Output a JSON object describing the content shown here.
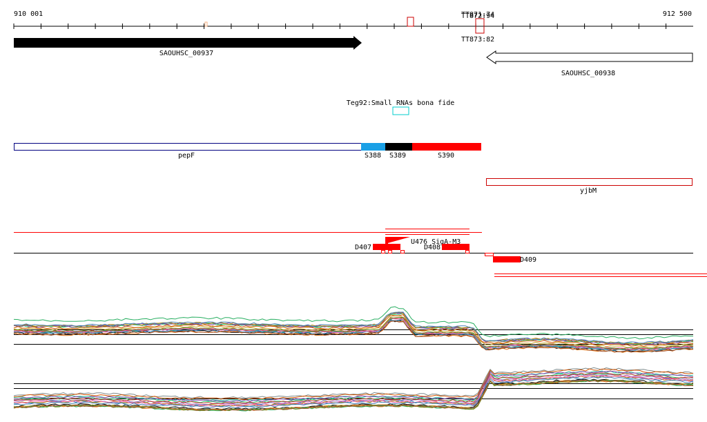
{
  "coordinates": {
    "start": "910 001",
    "end": "912 500",
    "start_bp": 910001,
    "end_bp": 912500
  },
  "terminators": [
    {
      "label": "TT871:74",
      "start_bp": 911700,
      "end_bp": 911710
    },
    {
      "label": "TT872:94",
      "start_bp": 911703,
      "end_bp": 911714
    },
    {
      "label": "TT873:82",
      "start_bp": 911700,
      "end_bp": 911712
    }
  ],
  "genes": [
    {
      "label": "SAOUHSC_00937",
      "strand": "+",
      "start_bp": 910001,
      "end_bp": 911280,
      "color": "#000000"
    },
    {
      "label": "SAOUHSC_00938",
      "strand": "-",
      "start_bp": 911730,
      "end_bp": 912500,
      "color": "#000000"
    }
  ],
  "small_rna": {
    "label": "Teg92:Small RNAs bona fide",
    "start_bp": 911391,
    "end_bp": 911451,
    "color": "#00cccc"
  },
  "operon_segments": [
    {
      "label": "pepF",
      "start_bp": 910001,
      "end_bp": 911280,
      "fill": "#ffffff",
      "stroke": "#000080"
    },
    {
      "label": "S388",
      "start_bp": 911280,
      "end_bp": 911370,
      "fill": "#1aa0e6",
      "stroke": "#1aa0e6"
    },
    {
      "label": "S389",
      "start_bp": 911370,
      "end_bp": 911470,
      "fill": "#000000",
      "stroke": "#000000"
    },
    {
      "label": "S390",
      "start_bp": 911470,
      "end_bp": 911725,
      "fill": "#ff0000",
      "stroke": "#ff0000"
    }
  ],
  "yjbm": {
    "label": "yjbM",
    "start_bp": 911745,
    "end_bp": 912500,
    "stroke": "#cc0000"
  },
  "transcripts": {
    "labels": {
      "d407": "D407",
      "u476": "U476_SigA-M3",
      "d408": "D408",
      "d409": "D409"
    },
    "colors": {
      "red": "#ff0000",
      "black": "#000000"
    }
  },
  "expression": {
    "upper_profile_colors": [
      "#000000",
      "#555555",
      "#c9a227",
      "#9b59b6",
      "#1abc9c",
      "#e67e22",
      "#2ecc71",
      "#7f8c8d",
      "#8e44ad",
      "#d35400",
      "#27ae60",
      "#2980b9",
      "#c0392b",
      "#b8860b",
      "#ff69b4",
      "#6b8e23",
      "#4682b4",
      "#a0522d"
    ],
    "lower_profile_colors": [
      "#000000",
      "#555555",
      "#c9a227",
      "#9b59b6",
      "#1abc9c",
      "#e67e22",
      "#2ecc71",
      "#7f8c8d",
      "#8e44ad",
      "#d35400",
      "#27ae60",
      "#2980b9",
      "#c0392b",
      "#b8860b",
      "#ff69b4",
      "#6b8e23",
      "#4682b4",
      "#a0522d"
    ]
  }
}
